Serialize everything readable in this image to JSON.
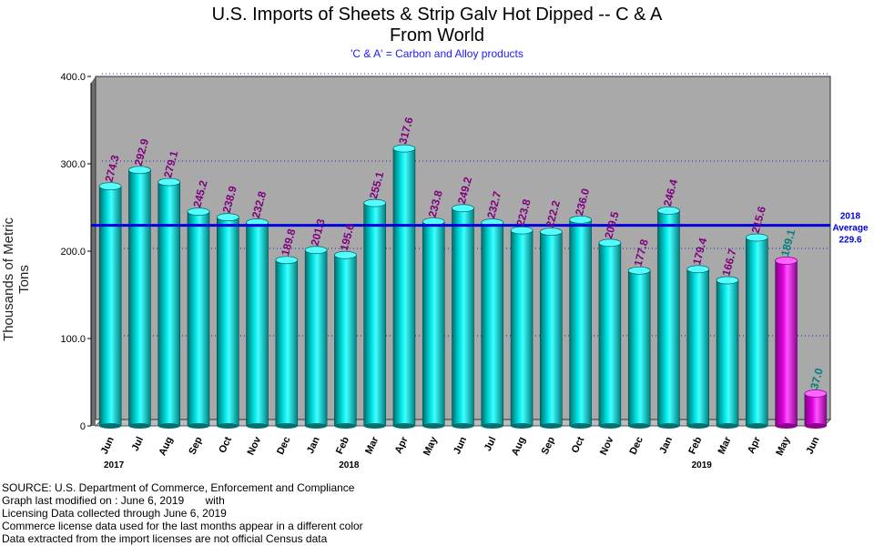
{
  "chart_data": {
    "type": "bar",
    "title": "U.S. Imports of Sheets & Strip Galv Hot Dipped -- C & A",
    "title_line2": "From World",
    "subtitle": "'C & A' = Carbon and Alloy products",
    "ylabel": "Thousands of Metric Tons",
    "xlabel": "",
    "ylim": [
      0,
      400
    ],
    "yticks": [
      "0",
      "100.0",
      "200.0",
      "300.0",
      "400.0"
    ],
    "grid": true,
    "categories": [
      "Jun",
      "Jul",
      "Aug",
      "Sep",
      "Oct",
      "Nov",
      "Dec",
      "Jan",
      "Feb",
      "Mar",
      "Apr",
      "May",
      "Jun",
      "Jul",
      "Aug",
      "Sep",
      "Oct",
      "Nov",
      "Dec",
      "Jan",
      "Feb",
      "Mar",
      "Apr",
      "May",
      "Jun"
    ],
    "year_labels": [
      {
        "label": "2017",
        "at_index": 0
      },
      {
        "label": "2018",
        "at_index": 8
      },
      {
        "label": "2019",
        "at_index": 20
      }
    ],
    "values": [
      274.3,
      292.9,
      279.1,
      245.2,
      238.9,
      232.8,
      189.8,
      201.3,
      195.6,
      255.1,
      317.6,
      233.8,
      249.2,
      232.7,
      223.8,
      222.2,
      236.0,
      209.5,
      177.8,
      246.4,
      179.4,
      166.7,
      215.6,
      189.1,
      37.0
    ],
    "value_labels": [
      "274.3",
      "292.9",
      "279.1",
      "245.2",
      "238.9",
      "232.8",
      "189.8",
      "201.3",
      "195.6",
      "255.1",
      "317.6",
      "233.8",
      "249.2",
      "232.7",
      "223.8",
      "222.2",
      "236.0",
      "209.5",
      "177.8",
      "246.4",
      "179.4",
      "166.7",
      "215.6",
      "189.1",
      "37.0"
    ],
    "license_data_from_index": 23,
    "average": {
      "value": 229.6,
      "line1": "2018",
      "line2": "Average",
      "line3": "229.6"
    },
    "colors": {
      "bar": "#00b4b4",
      "bar_license": "#cc00cc",
      "label": "#800080",
      "label_license": "#008080",
      "average_line": "#0000dd",
      "plot_bg": "#a9a9a9"
    }
  },
  "footer": [
    "SOURCE: U.S. Department of Commerce, Enforcement and Compliance",
    "Graph last modified on : June 6, 2019       with",
    "Licensing Data collected through June 6, 2019",
    "Commerce license data used for the last months appear in a different color",
    "Data extracted from the import licenses are not official Census data"
  ]
}
